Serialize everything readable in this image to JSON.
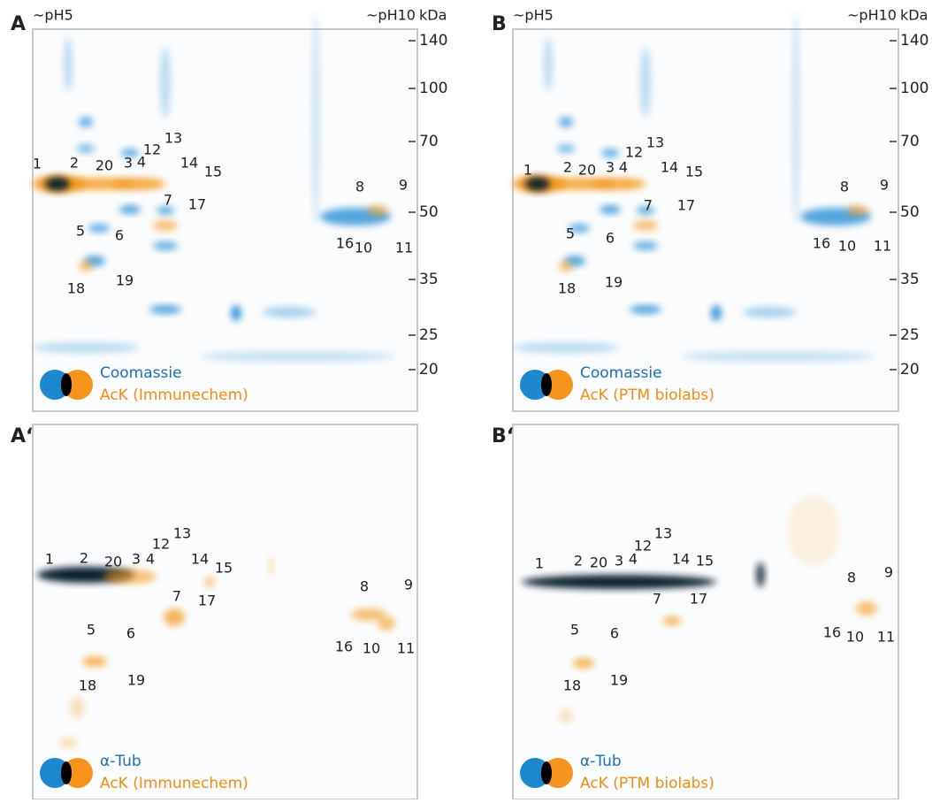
{
  "panels": [
    {
      "letter": "A",
      "ph_left": "~pH5",
      "ph_right": "~pH10",
      "mw_unit": "kDa",
      "mw_ticks": [
        "140",
        "100",
        "70",
        "50",
        "35",
        "25",
        "20"
      ],
      "spots": [
        "1",
        "2",
        "20",
        "3",
        "4",
        "12",
        "13",
        "14",
        "15",
        "7",
        "17",
        "8",
        "9",
        "16",
        "10",
        "11",
        "5",
        "6",
        "18",
        "19"
      ],
      "legend": [
        "Coomassie",
        "AcK (Immunechem)"
      ]
    },
    {
      "letter": "B",
      "ph_left": "~pH5",
      "ph_right": "~pH10",
      "mw_unit": "kDa",
      "mw_ticks": [
        "140",
        "100",
        "70",
        "50",
        "35",
        "25",
        "20"
      ],
      "spots": [
        "1",
        "2",
        "20",
        "3",
        "4",
        "12",
        "13",
        "14",
        "15",
        "7",
        "17",
        "8",
        "9",
        "16",
        "10",
        "11",
        "5",
        "6",
        "18",
        "19"
      ],
      "legend": [
        "Coomassie",
        "AcK (PTM biolabs)"
      ]
    },
    {
      "letter": "A‘",
      "spots": [
        "1",
        "2",
        "20",
        "3",
        "4",
        "12",
        "13",
        "14",
        "15",
        "7",
        "17",
        "8",
        "9",
        "16",
        "10",
        "11",
        "5",
        "6",
        "18",
        "19"
      ],
      "legend": [
        "α-Tub",
        "AcK (Immunechem)"
      ]
    },
    {
      "letter": "B‘",
      "spots": [
        "1",
        "2",
        "20",
        "3",
        "4",
        "12",
        "13",
        "14",
        "15",
        "7",
        "17",
        "8",
        "9",
        "16",
        "10",
        "11",
        "5",
        "6",
        "18",
        "19"
      ],
      "legend": [
        "α-Tub",
        "AcK (PTM biolabs)"
      ]
    }
  ]
}
